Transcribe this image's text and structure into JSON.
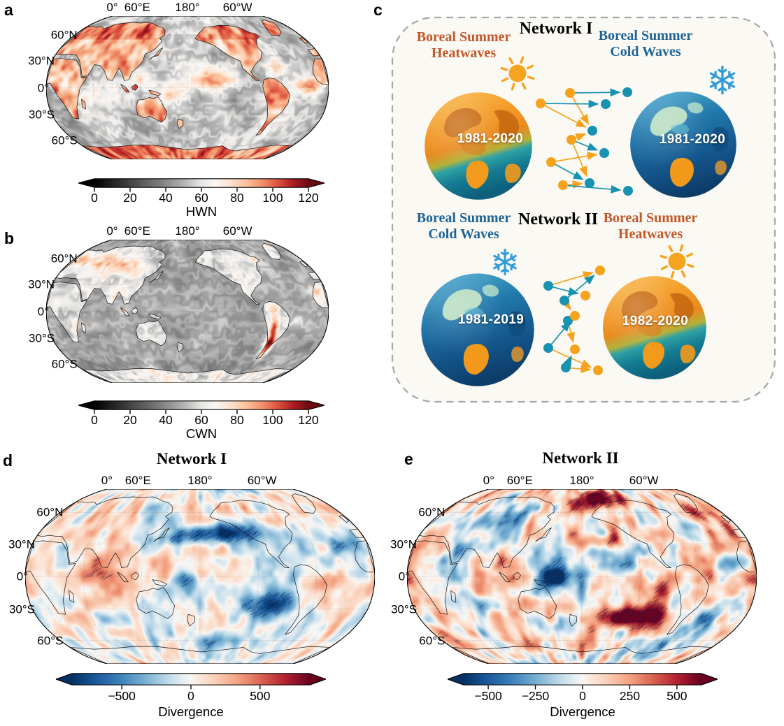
{
  "panels": {
    "a": {
      "letter": "a",
      "axis_top": [
        "0°",
        "60°E",
        "180°",
        "60°W"
      ],
      "axis_left": [
        "60°N",
        "30°N",
        "0°",
        "30°S",
        "60°S"
      ],
      "colorbar": {
        "ticks": [
          "0",
          "20",
          "40",
          "60",
          "80",
          "100",
          "120"
        ],
        "range": [
          0,
          120
        ],
        "label": "HWN"
      }
    },
    "b": {
      "letter": "b",
      "axis_top": [
        "0°",
        "60°E",
        "180°",
        "60°W"
      ],
      "axis_left": [
        "60°N",
        "30°N",
        "0°",
        "30°S",
        "60°S"
      ],
      "colorbar": {
        "ticks": [
          "0",
          "20",
          "40",
          "60",
          "80",
          "100",
          "120"
        ],
        "range": [
          0,
          120
        ],
        "label": "CWN"
      }
    },
    "c": {
      "letter": "c",
      "network1": {
        "title": "Network I",
        "left_title_line1": "Boreal Summer",
        "left_title_line2": "Heatwaves",
        "left_years": "1981-2020",
        "right_title_line1": "Boreal Summer",
        "right_title_line2": "Cold Waves",
        "right_years": "1981-2020"
      },
      "network2": {
        "title": "Network II",
        "left_title_line1": "Boreal Summer",
        "left_title_line2": "Cold Waves",
        "left_years": "1981-2019",
        "right_title_line1": "Boreal Summer",
        "right_title_line2": "Heatwaves",
        "right_years": "1982-2020"
      }
    },
    "d": {
      "letter": "d",
      "title": "Network I",
      "axis_top": [
        "0°",
        "60°E",
        "180°",
        "60°W"
      ],
      "axis_left": [
        "60°N",
        "30°N",
        "0°",
        "30°S",
        "60°S"
      ],
      "colorbar": {
        "ticks": [
          "−500",
          "0",
          "500"
        ],
        "range": [
          -860,
          860
        ],
        "label": "Divergence"
      }
    },
    "e": {
      "letter": "e",
      "title": "Network II",
      "axis_top": [
        "0°",
        "60°E",
        "180°",
        "60°W"
      ],
      "axis_left": [
        "60°N",
        "30°N",
        "0°",
        "30°S",
        "60°S"
      ],
      "colorbar": {
        "ticks": [
          "−500",
          "−250",
          "0",
          "250",
          "500"
        ],
        "range": [
          -630,
          630
        ],
        "label": "Divergence"
      }
    }
  },
  "colors": {
    "heat_text": "#c2582a",
    "cold_text": "#1d6496",
    "node_orange": "#f6a21c",
    "node_teal": "#1792b0",
    "sun": "#f6a41f",
    "snowflake": "#2f9cd9",
    "hwn_dark_red": "#6a0d12",
    "rdbu_negative_end": "#053061",
    "rdbu_positive_end": "#67001f",
    "panel_c_background": "#fbf9f3",
    "panel_c_border": "#a6a6a6"
  },
  "chart_data": [
    {
      "type": "heatmap",
      "panel": "a",
      "projection": "Robinson, central meridian 180°",
      "variable": "HWN",
      "title": "",
      "colorbar": {
        "ticks": [
          0,
          20,
          40,
          60,
          80,
          100,
          120
        ],
        "label": "HWN",
        "extend": "both",
        "colormap": "black→gray→white→red"
      },
      "description": "Heatwave number climatology: most land areas saturated dark red (≈90–120), oceans gray-white (≈40–70) with reddish tropical patches",
      "graticule": {
        "parallels_deg": 30,
        "meridians_deg": 60
      }
    },
    {
      "type": "heatmap",
      "panel": "b",
      "projection": "Robinson, central meridian 180°",
      "variable": "CWN",
      "title": "",
      "colorbar": {
        "ticks": [
          0,
          20,
          40,
          60,
          80,
          100,
          120
        ],
        "label": "CWN",
        "extend": "both",
        "colormap": "black→gray→white→red"
      },
      "description": "Cold-wave number climatology: mostly gray-white oceans (≈40–65), moderate red over Eurasia and land, dark red along the Andes (≈120)",
      "graticule": {
        "parallels_deg": 30,
        "meridians_deg": 60
      }
    },
    {
      "type": "diagram",
      "panel": "c",
      "description": "Two climate networks between globes: Network I links Boreal Summer Heatwaves (1981-2020) to Boreal Summer Cold Waves (1981-2020); Network II links Boreal Summer Cold Waves (1981-2019) to Boreal Summer Heatwaves (1982-2020)"
    },
    {
      "type": "heatmap",
      "panel": "d",
      "projection": "Robinson, central meridian 180°",
      "variable": "Divergence",
      "title": "Network I",
      "colorbar": {
        "ticks": [
          -500,
          0,
          500
        ],
        "label": "Divergence",
        "range": [
          -860,
          860
        ],
        "extend": "both",
        "colormap": "RdBu reversed"
      },
      "description": "Network divergence field with significance hatching; strong negative (dark blue) bands in the North Pacific and Southeast Pacific, scattered positive (red) patches over tropics",
      "hatching": true
    },
    {
      "type": "heatmap",
      "panel": "e",
      "projection": "Robinson, central meridian 180°",
      "variable": "Divergence",
      "title": "Network II",
      "colorbar": {
        "ticks": [
          -500,
          -250,
          0,
          250,
          500
        ],
        "label": "Divergence",
        "range": [
          -630,
          630
        ],
        "extend": "both",
        "colormap": "RdBu reversed"
      },
      "description": "Network divergence field with significance hatching; strong positive (dark red) arc in the Southeast Pacific and high northern latitudes, negative (blue) patch in the western tropical Pacific",
      "hatching": true
    }
  ]
}
